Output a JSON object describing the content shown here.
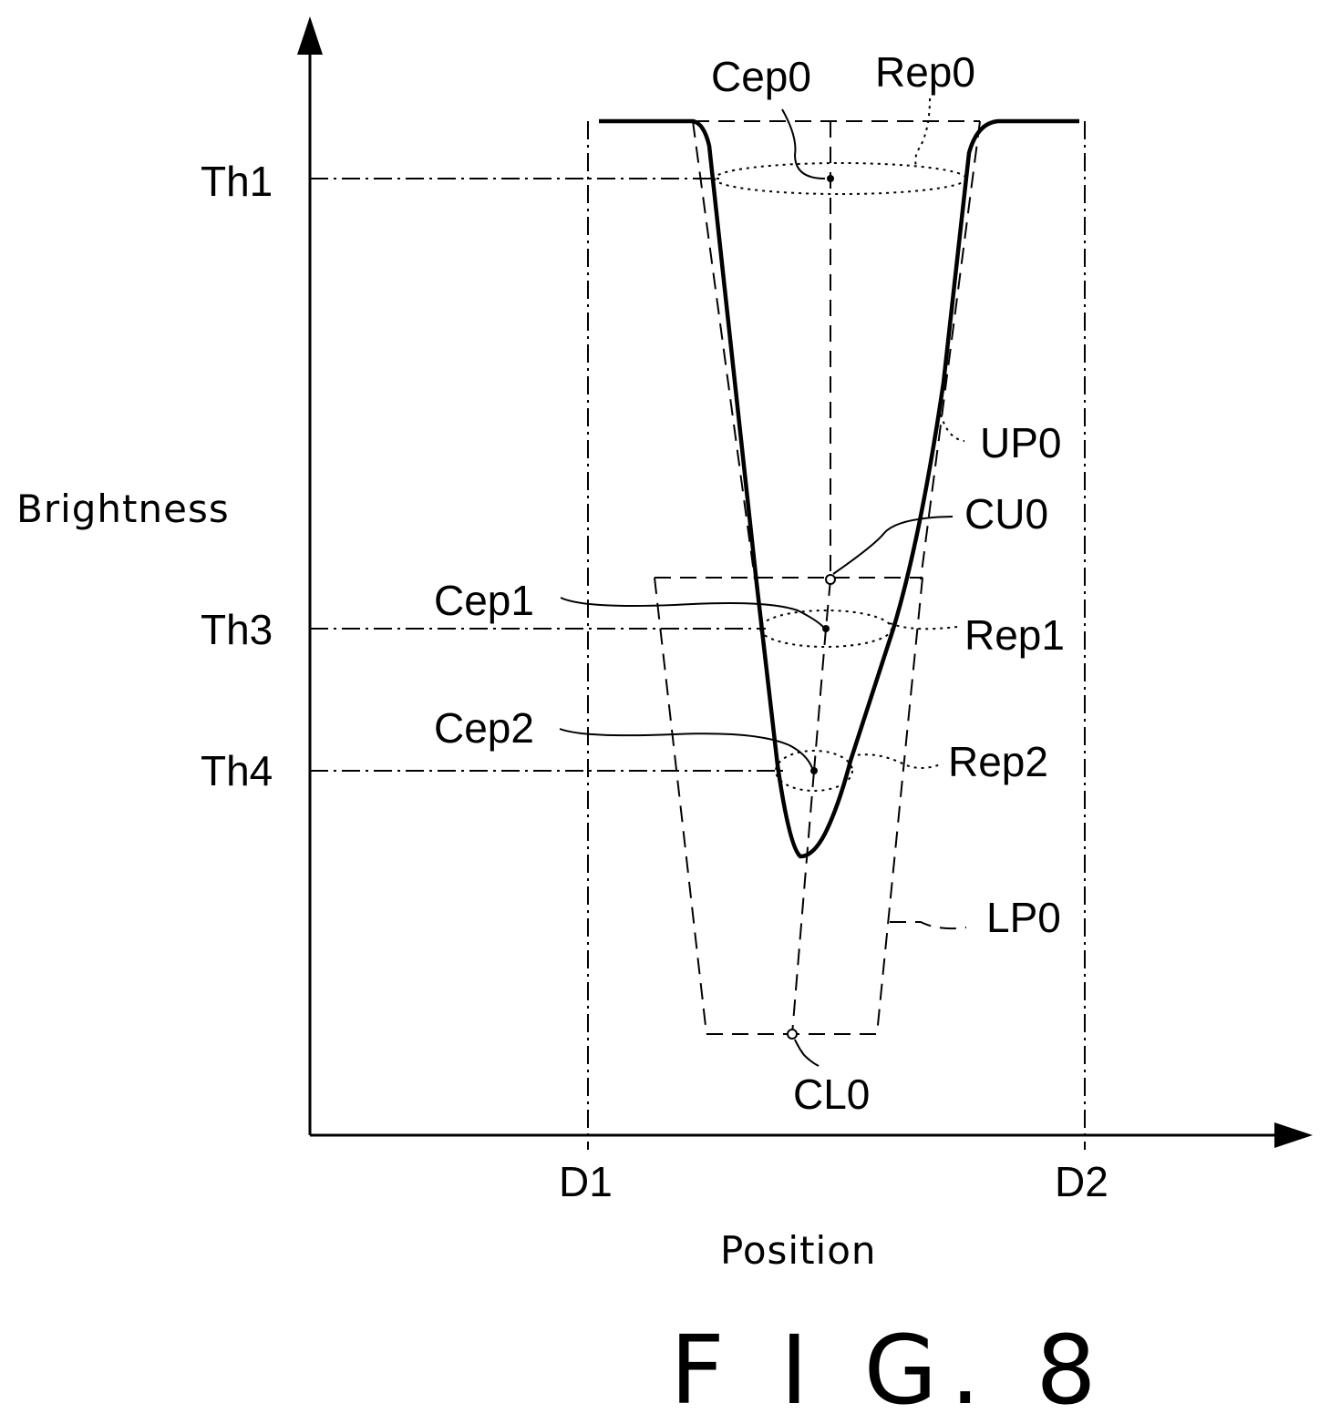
{
  "figure": {
    "title": "F I G. 8",
    "y_axis_label": "Brightness",
    "x_axis_label": "Position"
  },
  "thresholds": {
    "th1": "Th1",
    "th3": "Th3",
    "th4": "Th4"
  },
  "positions": {
    "d1": "D1",
    "d2": "D2"
  },
  "annotations": {
    "cep0": "Cep0",
    "rep0": "Rep0",
    "up0": "UP0",
    "cu0": "CU0",
    "cep1": "Cep1",
    "rep1": "Rep1",
    "cep2": "Cep2",
    "rep2": "Rep2",
    "lp0": "LP0",
    "cl0": "CL0"
  }
}
